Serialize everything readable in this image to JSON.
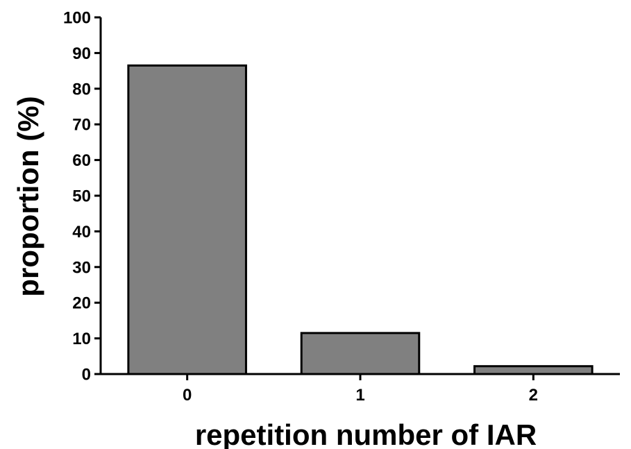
{
  "chart_data": {
    "type": "bar",
    "title": "",
    "xlabel": "repetition number of IAR",
    "ylabel": "proportion (%)",
    "categories": [
      "0",
      "1",
      "2"
    ],
    "values": [
      86.5,
      11.5,
      2.2
    ],
    "ylim": [
      0,
      100
    ],
    "yticks": [
      0,
      10,
      20,
      30,
      40,
      50,
      60,
      70,
      80,
      90,
      100
    ],
    "grid": false,
    "legend": "none",
    "bar_color": "#808080",
    "edge_color": "#000000"
  }
}
